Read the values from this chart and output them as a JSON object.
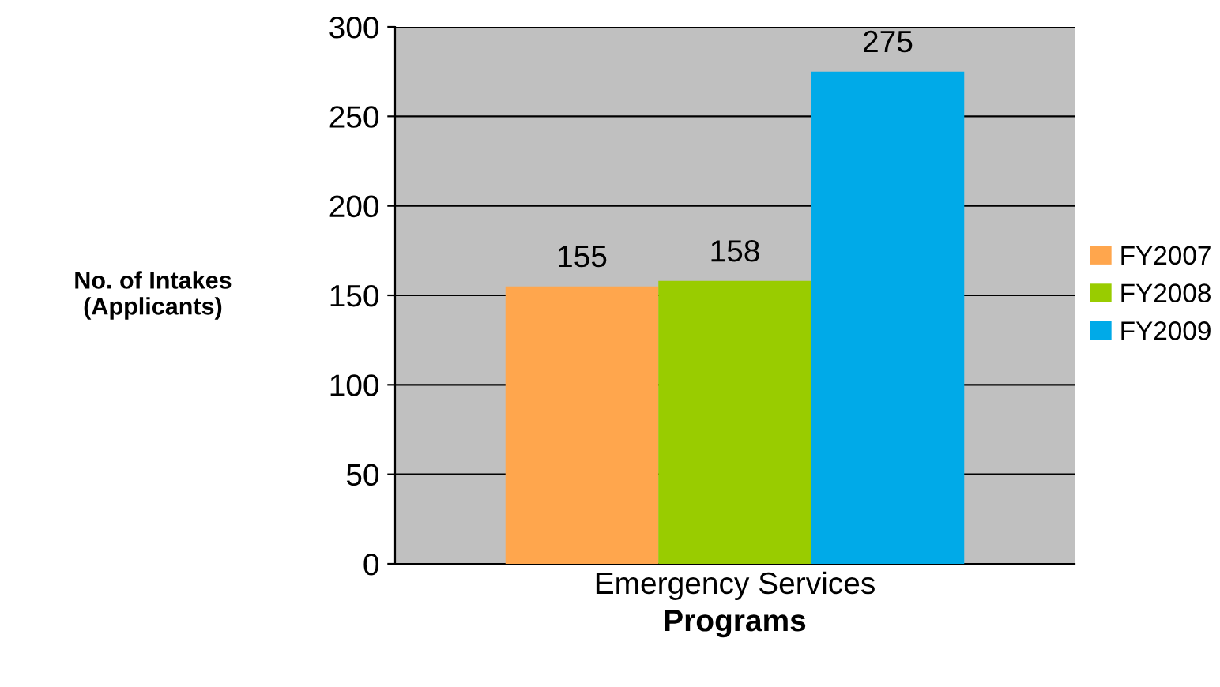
{
  "chart_data": {
    "type": "bar",
    "categories": [
      "Emergency Services"
    ],
    "series": [
      {
        "name": "FY2007",
        "color": "#ffa64d",
        "values": [
          155
        ]
      },
      {
        "name": "FY2008",
        "color": "#99cc00",
        "values": [
          158
        ]
      },
      {
        "name": "FY2009",
        "color": "#00aae8",
        "values": [
          275
        ]
      }
    ],
    "xlabel": "Programs",
    "ylabel": "No. of Intakes\n(Applicants)",
    "ylim": [
      0,
      300
    ],
    "yticks": [
      0,
      50,
      100,
      150,
      200,
      250,
      300
    ],
    "grid": "y",
    "legend": "right",
    "data_labels": true
  }
}
